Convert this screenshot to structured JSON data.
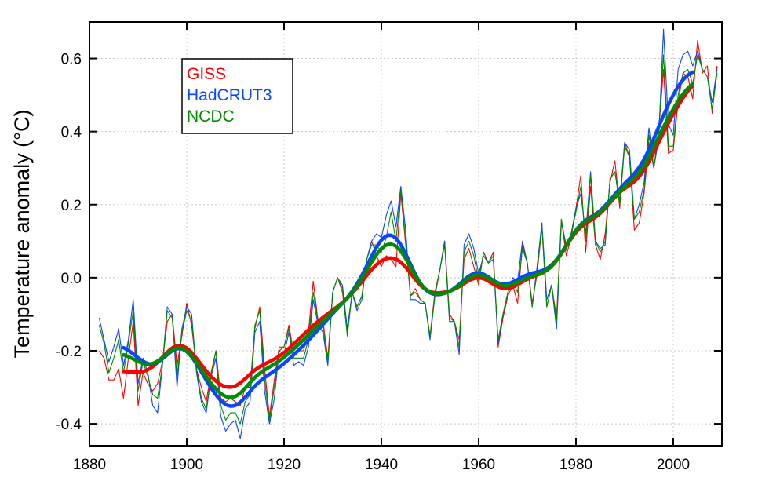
{
  "chart_data": {
    "type": "line",
    "title": "",
    "xlabel": "",
    "ylabel": "Temperature anomaly (°C)",
    "xlim": [
      1880,
      2010
    ],
    "ylim": [
      -0.46,
      0.7
    ],
    "xticks": [
      1880,
      1900,
      1920,
      1940,
      1960,
      1980,
      2000
    ],
    "xtick_labels": [
      "1880",
      "1900",
      "1920",
      "1940",
      "1960",
      "1980",
      "2000"
    ],
    "yticks": [
      -0.4,
      -0.2,
      0.0,
      0.2,
      0.4,
      0.6
    ],
    "ytick_labels": [
      "-0.4",
      "-0.2",
      "0.0",
      "0.2",
      "0.4",
      "0.6"
    ],
    "grid": true,
    "legend_position": "top-left",
    "year_start": 1882,
    "year_end": 2009,
    "smoothed_range": [
      1887,
      2004
    ],
    "series": [
      {
        "name": "GISS",
        "color": "#ff0000",
        "values": [
          -0.2,
          -0.22,
          -0.28,
          -0.28,
          -0.25,
          -0.33,
          -0.22,
          -0.12,
          -0.35,
          -0.26,
          -0.29,
          -0.31,
          -0.29,
          -0.23,
          -0.12,
          -0.1,
          -0.24,
          -0.16,
          -0.07,
          -0.13,
          -0.25,
          -0.3,
          -0.34,
          -0.26,
          -0.2,
          -0.33,
          -0.34,
          -0.33,
          -0.34,
          -0.35,
          -0.3,
          -0.3,
          -0.14,
          -0.08,
          -0.25,
          -0.38,
          -0.28,
          -0.19,
          -0.19,
          -0.13,
          -0.21,
          -0.2,
          -0.2,
          -0.15,
          -0.01,
          -0.12,
          -0.12,
          -0.22,
          -0.04,
          0.0,
          -0.04,
          -0.15,
          -0.04,
          -0.08,
          -0.05,
          0.05,
          0.1,
          0.06,
          0.03,
          0.06,
          0.05,
          0.03,
          0.23,
          0.09,
          -0.05,
          -0.03,
          -0.06,
          -0.07,
          -0.16,
          -0.04,
          0.02,
          0.1,
          -0.1,
          -0.12,
          -0.17,
          0.05,
          0.08,
          0.03,
          -0.02,
          0.07,
          0.04,
          0.07,
          -0.19,
          -0.11,
          -0.05,
          -0.02,
          -0.07,
          0.09,
          0.04,
          -0.07,
          0.01,
          0.14,
          -0.08,
          -0.02,
          -0.11,
          0.16,
          0.06,
          0.11,
          0.19,
          0.28,
          0.07,
          0.25,
          0.09,
          0.05,
          0.12,
          0.26,
          0.32,
          0.19,
          0.37,
          0.33,
          0.13,
          0.15,
          0.23,
          0.37,
          0.3,
          0.4,
          0.57,
          0.34,
          0.35,
          0.48,
          0.56,
          0.55,
          0.49,
          0.65,
          0.56,
          0.58,
          0.45,
          0.58
        ]
      },
      {
        "name": "HadCRUT3",
        "color": "#0a46ff",
        "values": [
          -0.11,
          -0.17,
          -0.23,
          -0.19,
          -0.14,
          -0.24,
          -0.17,
          -0.06,
          -0.29,
          -0.22,
          -0.26,
          -0.35,
          -0.37,
          -0.24,
          -0.08,
          -0.1,
          -0.3,
          -0.14,
          -0.08,
          -0.1,
          -0.26,
          -0.34,
          -0.37,
          -0.27,
          -0.22,
          -0.38,
          -0.42,
          -0.4,
          -0.39,
          -0.44,
          -0.36,
          -0.34,
          -0.15,
          -0.12,
          -0.31,
          -0.4,
          -0.33,
          -0.2,
          -0.21,
          -0.15,
          -0.24,
          -0.23,
          -0.24,
          -0.19,
          -0.06,
          -0.13,
          -0.15,
          -0.24,
          -0.04,
          0.0,
          -0.02,
          -0.14,
          -0.04,
          -0.09,
          -0.06,
          0.05,
          0.1,
          0.12,
          0.11,
          0.17,
          0.21,
          0.14,
          0.25,
          0.13,
          -0.06,
          -0.06,
          -0.07,
          -0.07,
          -0.17,
          -0.05,
          0.02,
          0.1,
          -0.12,
          -0.12,
          -0.21,
          0.09,
          0.12,
          0.08,
          0.01,
          0.06,
          0.04,
          0.05,
          -0.18,
          -0.1,
          -0.04,
          0.0,
          -0.01,
          0.1,
          0.04,
          -0.08,
          0.03,
          0.15,
          -0.06,
          -0.02,
          -0.14,
          0.15,
          0.09,
          0.12,
          0.19,
          0.23,
          0.12,
          0.29,
          0.1,
          0.08,
          0.09,
          0.27,
          0.29,
          0.21,
          0.37,
          0.35,
          0.16,
          0.2,
          0.26,
          0.41,
          0.3,
          0.38,
          0.68,
          0.42,
          0.39,
          0.57,
          0.61,
          0.62,
          0.58,
          0.62,
          0.57,
          0.55,
          0.48,
          0.57
        ]
      },
      {
        "name": "NCDC",
        "color": "#008c00",
        "values": [
          -0.13,
          -0.18,
          -0.26,
          -0.22,
          -0.17,
          -0.26,
          -0.18,
          -0.09,
          -0.31,
          -0.23,
          -0.27,
          -0.32,
          -0.33,
          -0.24,
          -0.09,
          -0.11,
          -0.27,
          -0.15,
          -0.09,
          -0.12,
          -0.25,
          -0.33,
          -0.36,
          -0.27,
          -0.2,
          -0.35,
          -0.39,
          -0.37,
          -0.37,
          -0.4,
          -0.34,
          -0.32,
          -0.13,
          -0.09,
          -0.28,
          -0.39,
          -0.3,
          -0.2,
          -0.19,
          -0.14,
          -0.22,
          -0.22,
          -0.22,
          -0.17,
          -0.04,
          -0.12,
          -0.13,
          -0.23,
          -0.04,
          0.0,
          -0.03,
          -0.16,
          -0.04,
          -0.08,
          -0.05,
          0.05,
          0.09,
          0.09,
          0.07,
          0.11,
          0.18,
          0.1,
          0.24,
          0.1,
          -0.05,
          -0.04,
          -0.06,
          -0.07,
          -0.16,
          -0.05,
          0.02,
          0.09,
          -0.11,
          -0.12,
          -0.19,
          0.07,
          0.1,
          0.06,
          -0.01,
          0.07,
          0.04,
          0.06,
          -0.17,
          -0.1,
          -0.04,
          -0.01,
          -0.04,
          0.08,
          0.04,
          -0.08,
          0.02,
          0.14,
          -0.08,
          -0.02,
          -0.12,
          0.16,
          0.08,
          0.12,
          0.18,
          0.25,
          0.1,
          0.28,
          0.1,
          0.07,
          0.1,
          0.27,
          0.29,
          0.2,
          0.36,
          0.33,
          0.16,
          0.18,
          0.24,
          0.39,
          0.3,
          0.4,
          0.61,
          0.36,
          0.36,
          0.5,
          0.56,
          0.57,
          0.53,
          0.61,
          0.57,
          0.55,
          0.46,
          0.56
        ]
      }
    ]
  }
}
